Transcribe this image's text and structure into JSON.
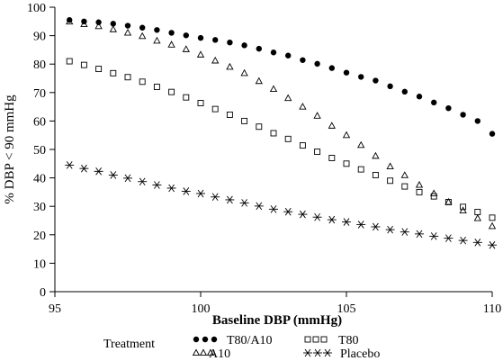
{
  "chart_data": {
    "type": "scatter",
    "title": "",
    "xlabel": "Baseline DBP (mmHg)",
    "ylabel": "% DBP < 90 mmHg",
    "xlim": [
      95,
      110
    ],
    "ylim": [
      0,
      100
    ],
    "x_ticks": [
      95,
      100,
      105,
      110
    ],
    "y_ticks": [
      0,
      10,
      20,
      30,
      40,
      50,
      60,
      70,
      80,
      90,
      100
    ],
    "grid": false,
    "legend_title": "Treatment",
    "legend_position": "bottom",
    "x": [
      95.5,
      96.0,
      96.5,
      97.0,
      97.5,
      98.0,
      98.5,
      99.0,
      99.5,
      100.0,
      100.5,
      101.0,
      101.5,
      102.0,
      102.5,
      103.0,
      103.5,
      104.0,
      104.5,
      105.0,
      105.5,
      106.0,
      106.5,
      107.0,
      107.5,
      108.0,
      108.5,
      109.0,
      109.5,
      110.0
    ],
    "series": [
      {
        "name": "T80/A10",
        "marker": "dot",
        "values": [
          95.5,
          95.0,
          94.7,
          94.2,
          93.5,
          92.8,
          92.0,
          91.0,
          90.1,
          89.2,
          88.5,
          87.6,
          86.6,
          85.4,
          84.1,
          83.0,
          81.4,
          80.1,
          78.6,
          77.0,
          75.5,
          74.2,
          72.2,
          70.3,
          68.6,
          66.5,
          64.5,
          62.2,
          60.0,
          55.5
        ]
      },
      {
        "name": "T80",
        "marker": "square",
        "values": [
          81.0,
          79.7,
          78.3,
          76.8,
          75.4,
          73.8,
          72.0,
          70.2,
          68.3,
          66.3,
          64.2,
          62.2,
          60.0,
          58.0,
          55.7,
          53.7,
          51.4,
          49.2,
          47.0,
          45.0,
          43.0,
          41.0,
          39.0,
          37.0,
          35.0,
          33.5,
          31.5,
          29.8,
          28.0,
          26.0
        ]
      },
      {
        "name": "A10",
        "marker": "triangle",
        "values": [
          94.9,
          94.0,
          93.3,
          92.2,
          91.0,
          89.8,
          88.2,
          86.8,
          85.2,
          83.3,
          81.2,
          79.0,
          76.8,
          74.0,
          71.2,
          68.0,
          65.0,
          61.8,
          58.3,
          55.0,
          51.5,
          47.7,
          44.0,
          40.9,
          37.5,
          34.5,
          31.5,
          28.5,
          25.8,
          23.0
        ]
      },
      {
        "name": "Placebo",
        "marker": "asterisk",
        "values": [
          44.5,
          43.3,
          42.3,
          41.0,
          39.9,
          38.7,
          37.5,
          36.4,
          35.3,
          34.5,
          33.3,
          32.3,
          31.2,
          30.1,
          29.0,
          28.1,
          27.2,
          26.2,
          25.3,
          24.5,
          23.6,
          22.8,
          21.8,
          21.0,
          20.3,
          19.5,
          18.8,
          18.0,
          17.3,
          16.4
        ]
      }
    ]
  }
}
